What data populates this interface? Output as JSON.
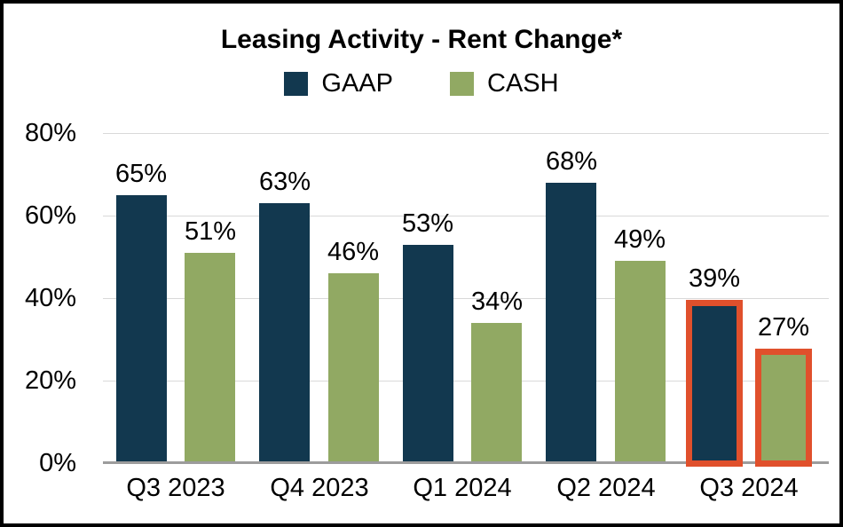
{
  "chart": {
    "title": "Leasing Activity - Rent Change*"
  },
  "chart_data": {
    "type": "bar",
    "title": "Leasing Activity - Rent Change*",
    "categories": [
      "Q3 2023",
      "Q4 2023",
      "Q1 2024",
      "Q2 2024",
      "Q3 2024"
    ],
    "series": [
      {
        "name": "GAAP",
        "color": "#12384F",
        "values": [
          65,
          63,
          53,
          68,
          39
        ]
      },
      {
        "name": "CASH",
        "color": "#91A963",
        "values": [
          51,
          46,
          34,
          49,
          27
        ]
      }
    ],
    "value_suffix": "%",
    "ylim": [
      0,
      80
    ],
    "y_tick_step": 20,
    "y_tick_labels": [
      "0%",
      "20%",
      "40%",
      "60%",
      "80%"
    ],
    "grid": true,
    "legend_position": "top-center",
    "axis_line_color": "#9C9C9C",
    "gridline_color": "#D9D9D9",
    "highlight": {
      "category": "Q3 2024",
      "outline_color": "#E0502C"
    }
  }
}
